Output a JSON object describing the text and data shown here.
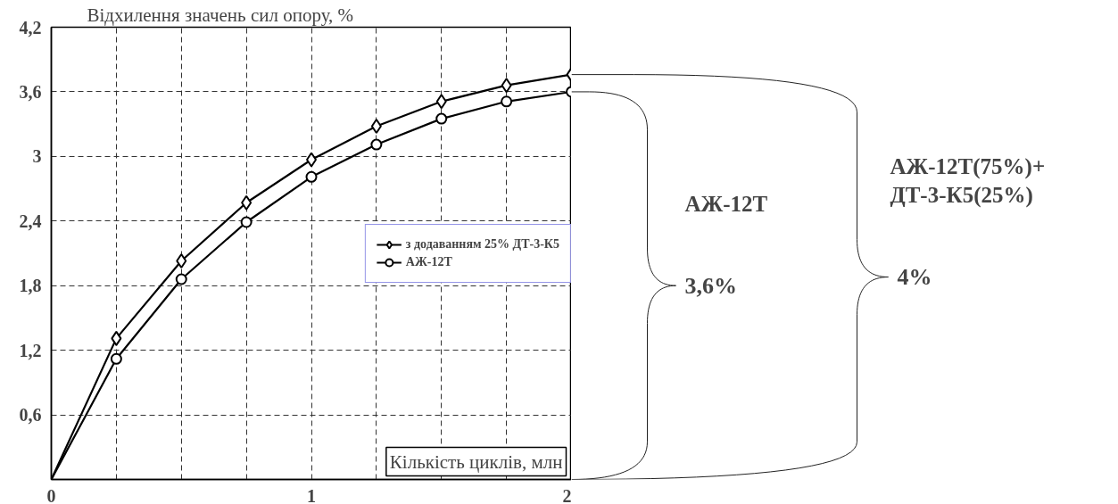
{
  "chart_data": {
    "type": "line",
    "ylabel": "Відхилення значень сил опору, %",
    "xlabel": "Кількість циклів, млн",
    "x": [
      0,
      0.25,
      0.5,
      0.75,
      1,
      1.25,
      1.5,
      1.75,
      2
    ],
    "series": [
      {
        "name": "з додаванням 25% ДТ-3-К5",
        "color": "#000000",
        "marker": "diamond",
        "values": [
          0,
          1.31,
          2.03,
          2.57,
          2.97,
          3.28,
          3.51,
          3.66,
          3.76
        ]
      },
      {
        "name": "АЖ-12Т",
        "color": "#000000",
        "marker": "circle",
        "values": [
          0,
          1.12,
          1.86,
          2.39,
          2.81,
          3.11,
          3.35,
          3.51,
          3.6
        ]
      }
    ],
    "xlim": [
      0,
      2
    ],
    "ylim": [
      0,
      4.2
    ],
    "xticks": [
      0,
      {
        "value": 0.25,
        "label": null
      },
      {
        "value": 0.5,
        "label": null
      },
      {
        "value": 0.75,
        "label": null
      },
      1,
      {
        "value": 1.25,
        "label": null
      },
      {
        "value": 1.5,
        "label": null
      },
      {
        "value": 1.75,
        "label": null
      },
      2
    ],
    "yticks": [
      {
        "value": 0,
        "label": null
      },
      {
        "value": 0.6,
        "label": "0,6"
      },
      {
        "value": 1.2,
        "label": "1,2"
      },
      {
        "value": 1.8,
        "label": "1,8"
      },
      {
        "value": 2.4,
        "label": "2,4"
      },
      {
        "value": 3,
        "label": "3"
      },
      {
        "value": 3.6,
        "label": "3,6"
      },
      {
        "value": 4.2,
        "label": "4,2"
      }
    ],
    "grid": true,
    "legend": "center right",
    "line_style": "solid",
    "annotations": [
      "АЖ-12Т",
      "3,6%",
      "АЖ-12Т(75%)+\nДТ-3-К5(25%)",
      "4%"
    ]
  }
}
